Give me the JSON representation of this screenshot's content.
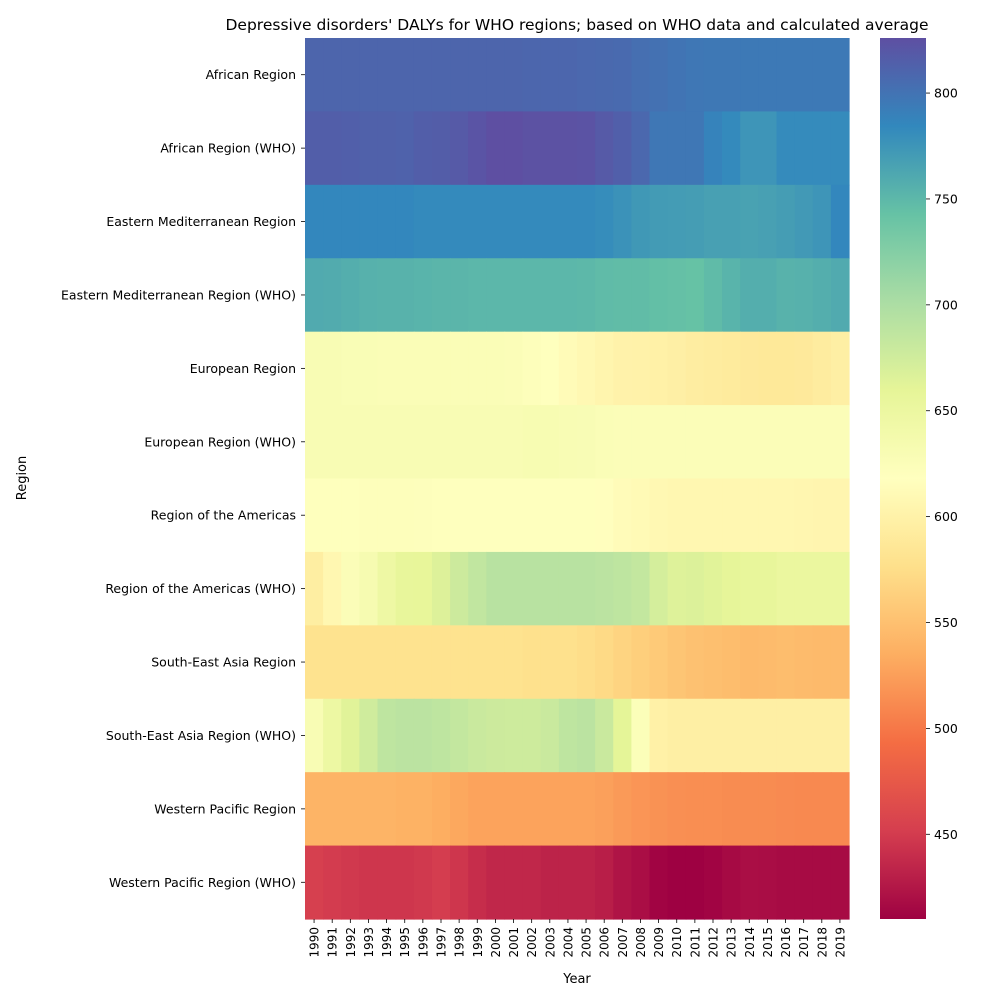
{
  "chart_data": {
    "type": "heatmap",
    "title": "Depressive disorders' DALYs for WHO regions; based on WHO data and calculated average",
    "xlabel": "Year",
    "ylabel": "Region",
    "x": [
      "1990",
      "1991",
      "1992",
      "1993",
      "1994",
      "1995",
      "1996",
      "1997",
      "1998",
      "1999",
      "2000",
      "2001",
      "2002",
      "2003",
      "2004",
      "2005",
      "2006",
      "2007",
      "2008",
      "2009",
      "2010",
      "2011",
      "2012",
      "2013",
      "2014",
      "2015",
      "2016",
      "2017",
      "2018",
      "2019"
    ],
    "y": [
      "African Region",
      "African Region (WHO)",
      "Eastern Mediterranean Region",
      "Eastern Mediterranean Region (WHO)",
      "European Region",
      "European Region (WHO)",
      "Region of the Americas",
      "Region of the Americas (WHO)",
      "South-East Asia Region",
      "South-East Asia Region (WHO)",
      "Western Pacific Region",
      "Western Pacific Region (WHO)"
    ],
    "values": [
      [
        810,
        810,
        810,
        810,
        810,
        810,
        810,
        810,
        810,
        810,
        810,
        810,
        809,
        809,
        809,
        808,
        807,
        806,
        803,
        801,
        799,
        797,
        796,
        796,
        795,
        795,
        795,
        795,
        795,
        795
      ],
      [
        815,
        815,
        814,
        813,
        813,
        812,
        815,
        816,
        818,
        822,
        826,
        826,
        824,
        824,
        824,
        823,
        818,
        814,
        808,
        797,
        797,
        797,
        788,
        783,
        775,
        775,
        782,
        782,
        782,
        782
      ],
      [
        785,
        785,
        785,
        785,
        785,
        785,
        783,
        783,
        783,
        783,
        783,
        783,
        783,
        783,
        783,
        783,
        781,
        777,
        773,
        771,
        770,
        769,
        767,
        767,
        766,
        767,
        769,
        772,
        775,
        785
      ],
      [
        760,
        759,
        757,
        755,
        754,
        754,
        753,
        752,
        752,
        751,
        751,
        751,
        751,
        751,
        751,
        750,
        748,
        747,
        747,
        745,
        744,
        743,
        748,
        753,
        757,
        757,
        754,
        755,
        757,
        760
      ],
      [
        630,
        630,
        628,
        628,
        627,
        627,
        627,
        627,
        627,
        627,
        627,
        625,
        622,
        619,
        612,
        608,
        604,
        601,
        600,
        599,
        597,
        594,
        592,
        591,
        589,
        588,
        588,
        589,
        592,
        596
      ],
      [
        630,
        630,
        630,
        630,
        630,
        630,
        630,
        630,
        630,
        630,
        630,
        630,
        632,
        632,
        630,
        629,
        627,
        625,
        625,
        625,
        625,
        625,
        625,
        625,
        625,
        625,
        625,
        625,
        625,
        625
      ],
      [
        620,
        620,
        620,
        622,
        622,
        622,
        621,
        620,
        619,
        619,
        619,
        619,
        619,
        619,
        619,
        619,
        617,
        613,
        611,
        608,
        607,
        607,
        607,
        607,
        607,
        607,
        607,
        606,
        605,
        605
      ],
      [
        595,
        607,
        625,
        633,
        647,
        656,
        657,
        666,
        678,
        686,
        692,
        692,
        692,
        692,
        692,
        692,
        690,
        688,
        684,
        672,
        665,
        667,
        663,
        659,
        656,
        656,
        652,
        652,
        652,
        652
      ],
      [
        580,
        580,
        580,
        580,
        580,
        580,
        580,
        580,
        580,
        580,
        580,
        580,
        578,
        578,
        578,
        575,
        571,
        566,
        562,
        558,
        554,
        551,
        549,
        547,
        545,
        546,
        547,
        546,
        545,
        545
      ],
      [
        630,
        648,
        663,
        676,
        688,
        690,
        690,
        688,
        684,
        680,
        678,
        677,
        677,
        680,
        688,
        690,
        680,
        660,
        624,
        599,
        596,
        596,
        596,
        596,
        596,
        596,
        596,
        596,
        596,
        596
      ],
      [
        540,
        540,
        540,
        540,
        540,
        538,
        538,
        535,
        531,
        528,
        528,
        528,
        528,
        528,
        528,
        528,
        526,
        522,
        519,
        517,
        515,
        514,
        514,
        513,
        513,
        513,
        512,
        511,
        511,
        511
      ],
      [
        453,
        450,
        448,
        446,
        446,
        446,
        448,
        451,
        446,
        440,
        436,
        436,
        436,
        433,
        433,
        433,
        430,
        423,
        419,
        412,
        410,
        410,
        412,
        416,
        419,
        418,
        417,
        417,
        417,
        417
      ]
    ],
    "vmin": 410,
    "vmax": 826,
    "colormap": "Spectral",
    "colorbar_ticks": [
      450,
      500,
      550,
      600,
      650,
      700,
      750,
      800
    ]
  }
}
